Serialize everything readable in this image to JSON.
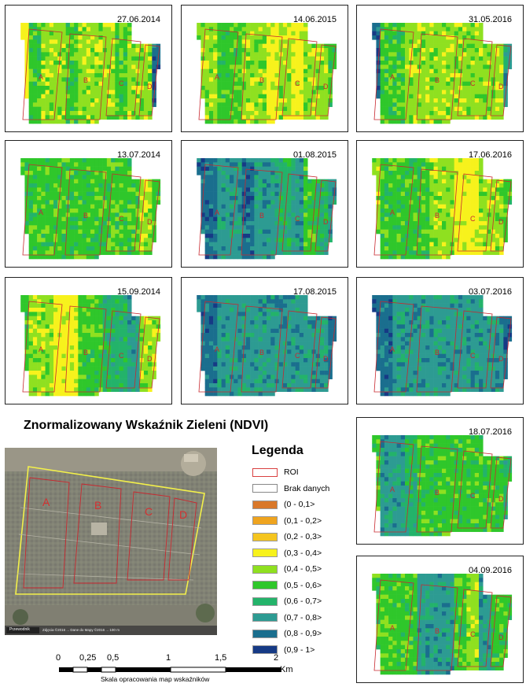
{
  "title": "Znormalizowany Wskaźnik Zieleni (NDVI)",
  "panels": [
    {
      "date": "27.06.2014",
      "profile": [
        2,
        5,
        4,
        4,
        5,
        4,
        4,
        4,
        5,
        4,
        4,
        8
      ]
    },
    {
      "date": "14.06.2015",
      "profile": [
        4,
        4,
        5,
        5,
        4,
        4,
        3,
        4,
        3,
        4,
        4,
        5
      ]
    },
    {
      "date": "31.05.2016",
      "profile": [
        8,
        5,
        5,
        4,
        4,
        4,
        4,
        4,
        4,
        4,
        4,
        7
      ]
    },
    {
      "date": "13.07.2014",
      "profile": [
        5,
        5,
        5,
        5,
        5,
        5,
        5,
        5,
        5,
        5,
        4,
        5
      ]
    },
    {
      "date": "01.08.2015",
      "profile": [
        8,
        8,
        7,
        7,
        8,
        7,
        7,
        6,
        7,
        5,
        6,
        7
      ]
    },
    {
      "date": "17.06.2016",
      "profile": [
        4,
        5,
        5,
        5,
        5,
        4,
        4,
        3,
        3,
        4,
        4,
        5
      ]
    },
    {
      "date": "15.09.2014",
      "profile": [
        5,
        4,
        4,
        3,
        3,
        5,
        5,
        6,
        6,
        7,
        4,
        4
      ]
    },
    {
      "date": "17.08.2015",
      "profile": [
        8,
        8,
        7,
        7,
        7,
        7,
        7,
        7,
        7,
        7,
        7,
        8
      ]
    },
    {
      "date": "03.07.2016",
      "profile": [
        8,
        8,
        7,
        7,
        7,
        7,
        7,
        7,
        7,
        7,
        7,
        8
      ]
    },
    {
      "date": "18.07.2016",
      "profile": [
        5,
        7,
        7,
        6,
        5,
        5,
        5,
        5,
        5,
        5,
        5,
        6
      ]
    },
    {
      "date": "04.09.2016",
      "profile": [
        5,
        5,
        5,
        5,
        7,
        7,
        7,
        5,
        4,
        7,
        5,
        5
      ]
    }
  ],
  "plots": [
    "A",
    "B",
    "C",
    "D"
  ],
  "legend": {
    "title": "Legenda",
    "items": [
      {
        "label": "ROI",
        "color": "#ffffff",
        "border": "#d94040"
      },
      {
        "label": "Brak danych",
        "color": "#ffffff",
        "border": "#888888"
      },
      {
        "label": "(0 - 0,1>",
        "color": "#d9782a"
      },
      {
        "label": "(0,1 - 0,2>",
        "color": "#efa41f"
      },
      {
        "label": "(0,2 - 0,3>",
        "color": "#f5c51f"
      },
      {
        "label": "(0,3 - 0,4>",
        "color": "#f7f21c"
      },
      {
        "label": "(0,4 - 0,5>",
        "color": "#8fe020"
      },
      {
        "label": "(0,5 - 0,6>",
        "color": "#2fc72b"
      },
      {
        "label": "(0,6 - 0,7>",
        "color": "#23b36a"
      },
      {
        "label": "(0,7 - 0,8>",
        "color": "#2d9b92"
      },
      {
        "label": "(0,8 - 0,9>",
        "color": "#1a6e8e"
      },
      {
        "label": "(0,9 - 1>",
        "color": "#163a85"
      }
    ]
  },
  "scale": {
    "ticks": [
      "0",
      "0,25",
      "0,5",
      "1",
      "1,5",
      "2"
    ],
    "unit": "Km",
    "caption": "Skala opracowania map wskaźników"
  },
  "photo_overlay": {
    "left_badge": "Przewodnik",
    "attribution_text": "Zdjęcia ©2016 ... Dane do Mapy ©2016 ... 100 m"
  }
}
